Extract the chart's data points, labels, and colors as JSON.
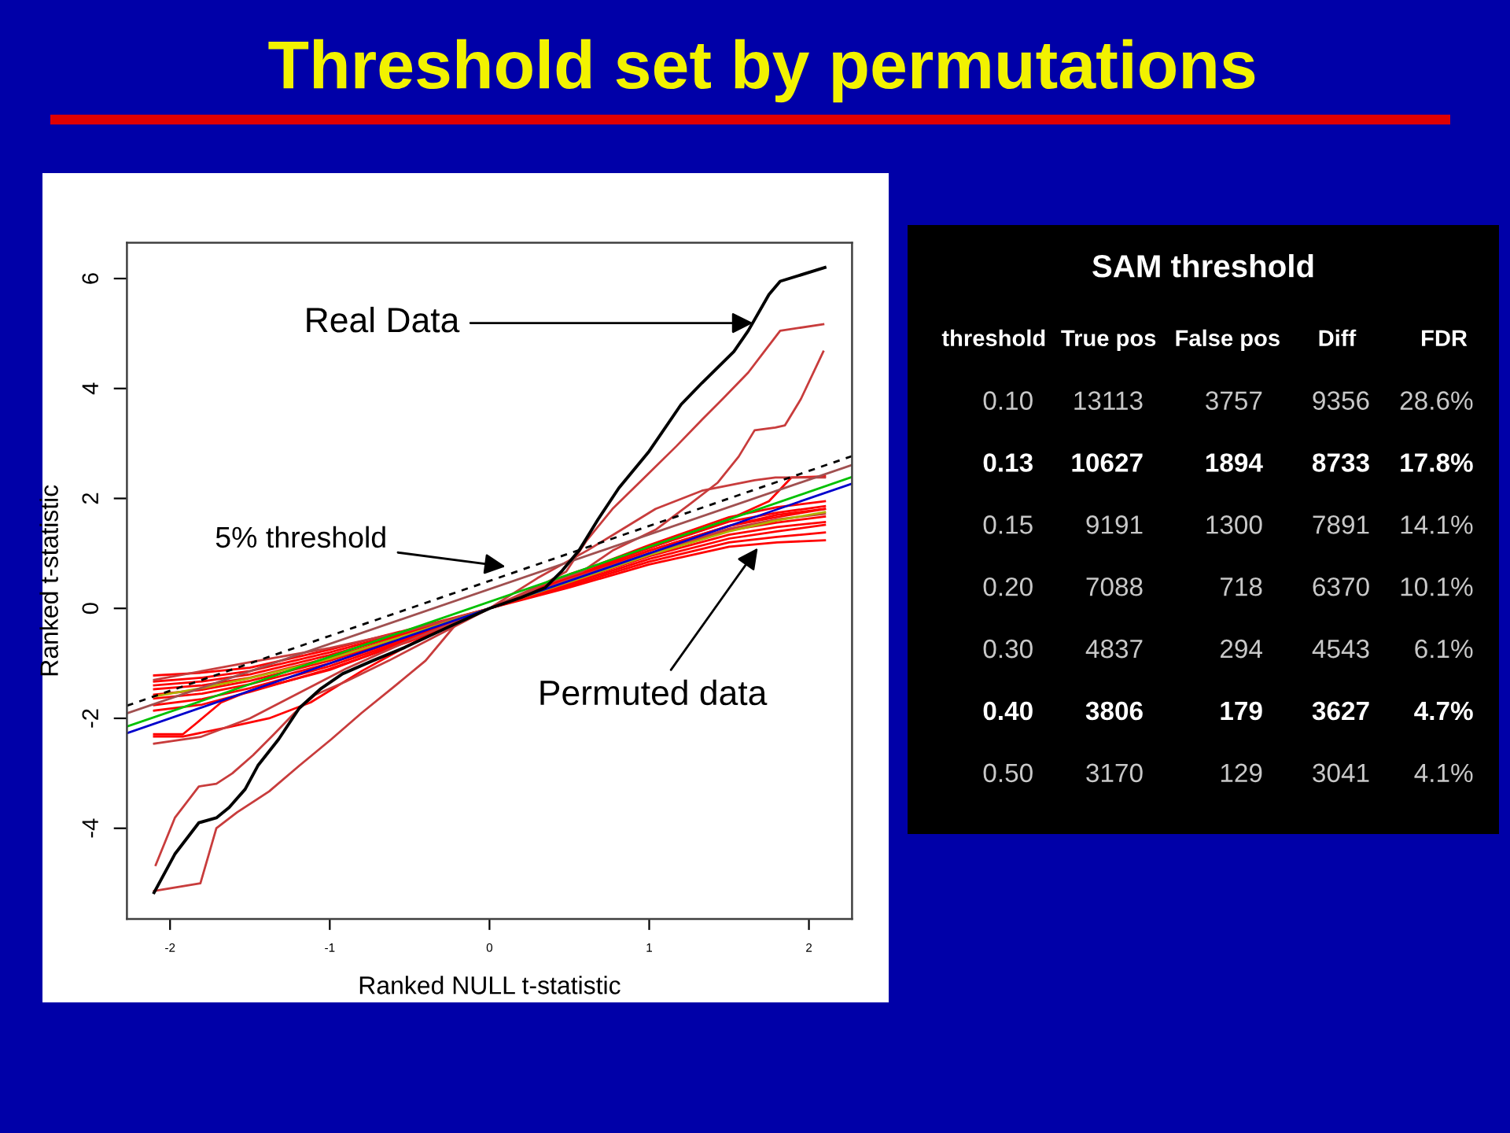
{
  "chart_data": [
    {
      "type": "line",
      "title": "Threshold set by permutations",
      "xlabel": "Ranked NULL t-statistic",
      "ylabel": "Ranked t-statistic",
      "xlim": [
        -2.27,
        2.27
      ],
      "ylim": [
        -5.65,
        6.65
      ],
      "xticks": [
        -2,
        -1,
        0,
        1,
        2
      ],
      "yticks": [
        -4,
        -2,
        0,
        2,
        4,
        6
      ],
      "x": [
        -2.1,
        -1.8,
        -1.5,
        -1.0,
        -0.5,
        0,
        0.5,
        1.0,
        1.5,
        1.8,
        2.1
      ],
      "series": [
        {
          "color": "#ff0000",
          "values": [
            -1.22,
            -1.17,
            -1.08,
            -0.75,
            -0.38,
            0,
            0.38,
            0.8,
            1.12,
            1.2,
            1.24
          ]
        },
        {
          "color": "#ff0000",
          "values": [
            -1.33,
            -1.26,
            -1.14,
            -0.8,
            -0.41,
            0,
            0.41,
            0.85,
            1.2,
            1.3,
            1.38
          ]
        },
        {
          "color": "#ff0000",
          "values": [
            -1.4,
            -1.33,
            -1.2,
            -0.85,
            -0.44,
            0,
            0.44,
            0.9,
            1.27,
            1.4,
            1.52
          ]
        },
        {
          "color": "#ff0000",
          "values": [
            -1.47,
            -1.4,
            -1.26,
            -0.9,
            -0.47,
            0,
            0.47,
            0.95,
            1.34,
            1.48,
            1.57
          ]
        },
        {
          "color": "#ff0000",
          "values": [
            -1.57,
            -1.48,
            -1.32,
            -0.95,
            -0.5,
            0,
            0.5,
            1.0,
            1.42,
            1.56,
            1.67
          ]
        },
        {
          "color": "#ff0000",
          "values": [
            -1.64,
            -1.55,
            -1.38,
            -1.0,
            -0.53,
            0,
            0.53,
            1.05,
            1.5,
            1.66,
            1.81
          ]
        },
        {
          "color": "#ff0000",
          "values": [
            -1.76,
            -1.65,
            -1.45,
            -1.05,
            -0.56,
            0,
            0.56,
            1.1,
            1.58,
            1.74,
            1.86
          ]
        },
        {
          "color": "#ff0000",
          "values": [
            -1.86,
            -1.75,
            -1.52,
            -1.1,
            -0.6,
            0,
            0.6,
            1.15,
            1.66,
            1.84,
            1.95
          ]
        },
        {
          "color": "#ff0000",
          "x": [
            -2.1,
            -1.92,
            -1.84,
            -1.68,
            -1.5,
            -1.0,
            -0.5,
            0,
            0.5,
            1.0,
            1.5,
            1.75,
            1.89,
            2.1
          ],
          "values": [
            -2.29,
            -2.29,
            -2.1,
            -1.71,
            -1.5,
            -1.12,
            -0.57,
            0,
            0.62,
            1.1,
            1.62,
            1.95,
            2.38,
            2.4
          ]
        },
        {
          "color": "#ff0000",
          "x": [
            -2.1,
            -1.92,
            -1.65,
            -1.38,
            -1.12,
            -0.8,
            -0.4,
            0,
            0.5,
            1.0,
            1.5,
            1.8,
            2.1
          ],
          "values": [
            -2.33,
            -2.33,
            -2.17,
            -2.0,
            -1.71,
            -1.14,
            -0.5,
            0,
            0.55,
            1.05,
            1.5,
            1.7,
            1.81
          ]
        },
        {
          "color": "#c83c3c",
          "x": [
            -2.1,
            -1.81,
            -1.5,
            -1.2,
            -0.9,
            -0.5,
            0,
            0.5,
            1.0,
            1.5,
            1.8,
            2.1
          ],
          "values": [
            -2.46,
            -2.34,
            -2.0,
            -1.55,
            -1.1,
            -0.58,
            0,
            0.52,
            1.0,
            1.45,
            1.62,
            1.72
          ]
        },
        {
          "color": "#c83c3c",
          "x": [
            -2.1,
            -1.5,
            -1.0,
            -0.5,
            0,
            0.3,
            0.61,
            0.77,
            1.04,
            1.33,
            1.66,
            1.79,
            2.1
          ],
          "values": [
            -1.3,
            -0.98,
            -0.72,
            -0.4,
            0,
            0.55,
            1.05,
            1.33,
            1.81,
            2.14,
            2.33,
            2.38,
            2.38
          ]
        },
        {
          "color": "#c83c3c",
          "x": [
            -2.09,
            -1.97,
            -1.82,
            -1.71,
            -1.61,
            -1.48,
            -1.35,
            -1.22,
            -1.09,
            -0.9,
            -0.63,
            -0.3,
            0,
            0.25,
            0.48,
            0.61,
            0.77,
            0.97,
            1.17,
            1.33,
            1.46,
            1.62,
            1.72,
            1.82,
            2.09
          ],
          "values": [
            -4.67,
            -3.81,
            -3.24,
            -3.19,
            -3.0,
            -2.67,
            -2.29,
            -1.9,
            -1.57,
            -1.33,
            -0.95,
            -0.45,
            0,
            0.3,
            0.67,
            1.24,
            1.81,
            2.38,
            2.95,
            3.43,
            3.81,
            4.29,
            4.67,
            5.05,
            5.17
          ]
        },
        {
          "color": "#c83c3c",
          "x": [
            -2.1,
            -1.81,
            -1.71,
            -1.58,
            -1.38,
            -1.19,
            -0.99,
            -0.8,
            -0.6,
            -0.4,
            -0.21,
            0,
            0.3,
            0.58,
            0.77,
            1.04,
            1.26,
            1.43,
            1.56,
            1.66,
            1.79,
            1.85,
            1.95,
            2.09
          ],
          "values": [
            -5.14,
            -5.0,
            -4.0,
            -3.71,
            -3.33,
            -2.86,
            -2.38,
            -1.9,
            -1.43,
            -0.95,
            -0.29,
            0,
            0.4,
            0.67,
            1.05,
            1.43,
            1.91,
            2.29,
            2.76,
            3.24,
            3.29,
            3.33,
            3.81,
            4.67
          ]
        },
        {
          "color": "#b0b000",
          "values": [
            -1.6,
            -1.45,
            -1.27,
            -0.92,
            -0.47,
            0,
            0.48,
            0.97,
            1.4,
            1.6,
            1.75
          ]
        },
        {
          "color": "#a05050",
          "x": [
            -2.27,
            2.27
          ],
          "values": [
            -1.91,
            2.61
          ]
        },
        {
          "color": "#00c000",
          "x": [
            -2.27,
            2.27
          ],
          "values": [
            -2.15,
            2.39
          ]
        },
        {
          "color": "#0000cc",
          "x": [
            -2.27,
            2.27
          ],
          "values": [
            -2.27,
            2.27
          ]
        },
        {
          "color": "#000000",
          "line_style": "dashed",
          "x": [
            -2.27,
            2.27
          ],
          "values": [
            -1.77,
            2.77
          ]
        },
        {
          "color": "#000000",
          "x": [
            -2.1,
            -1.97,
            -1.82,
            -1.71,
            -1.63,
            -1.53,
            -1.45,
            -1.32,
            -1.19,
            -1.06,
            -0.92,
            -0.73,
            -0.53,
            -0.25,
            0,
            0.2,
            0.35,
            0.45,
            0.56,
            0.68,
            0.81,
            1.0,
            1.2,
            1.33,
            1.53,
            1.62,
            1.75,
            1.82,
            2.1
          ],
          "values": [
            -5.17,
            -4.47,
            -3.9,
            -3.81,
            -3.62,
            -3.29,
            -2.86,
            -2.38,
            -1.81,
            -1.47,
            -1.19,
            -0.95,
            -0.71,
            -0.33,
            0,
            0.2,
            0.38,
            0.67,
            1.05,
            1.62,
            2.19,
            2.86,
            3.71,
            4.1,
            4.67,
            5.05,
            5.71,
            5.95,
            6.2
          ]
        }
      ],
      "annotations": [
        {
          "text": "Real Data",
          "x": 1.65,
          "y": 5.19
        },
        {
          "text": "5% threshold",
          "x": 0.1,
          "y": 0.76
        },
        {
          "text": "Permuted data",
          "x": 1.68,
          "y": 1.1
        }
      ]
    },
    {
      "type": "other",
      "title": "SAM threshold",
      "categories": [
        "threshold",
        "True pos",
        "False pos",
        "Diff",
        "FDR"
      ],
      "cell_labels": [
        [
          "0.10",
          "13113",
          "3757",
          "9356",
          "28.6%"
        ],
        [
          "0.13",
          "10627",
          "1894",
          "8733",
          "17.8%"
        ],
        [
          "0.15",
          "9191",
          "1300",
          "7891",
          "14.1%"
        ],
        [
          "0.20",
          "7088",
          "718",
          "6370",
          "10.1%"
        ],
        [
          "0.30",
          "4837",
          "294",
          "4543",
          "6.1%"
        ],
        [
          "0.40",
          "3806",
          "179",
          "3627",
          "4.7%"
        ],
        [
          "0.50",
          "3170",
          "129",
          "3041",
          "4.1%"
        ]
      ]
    }
  ]
}
